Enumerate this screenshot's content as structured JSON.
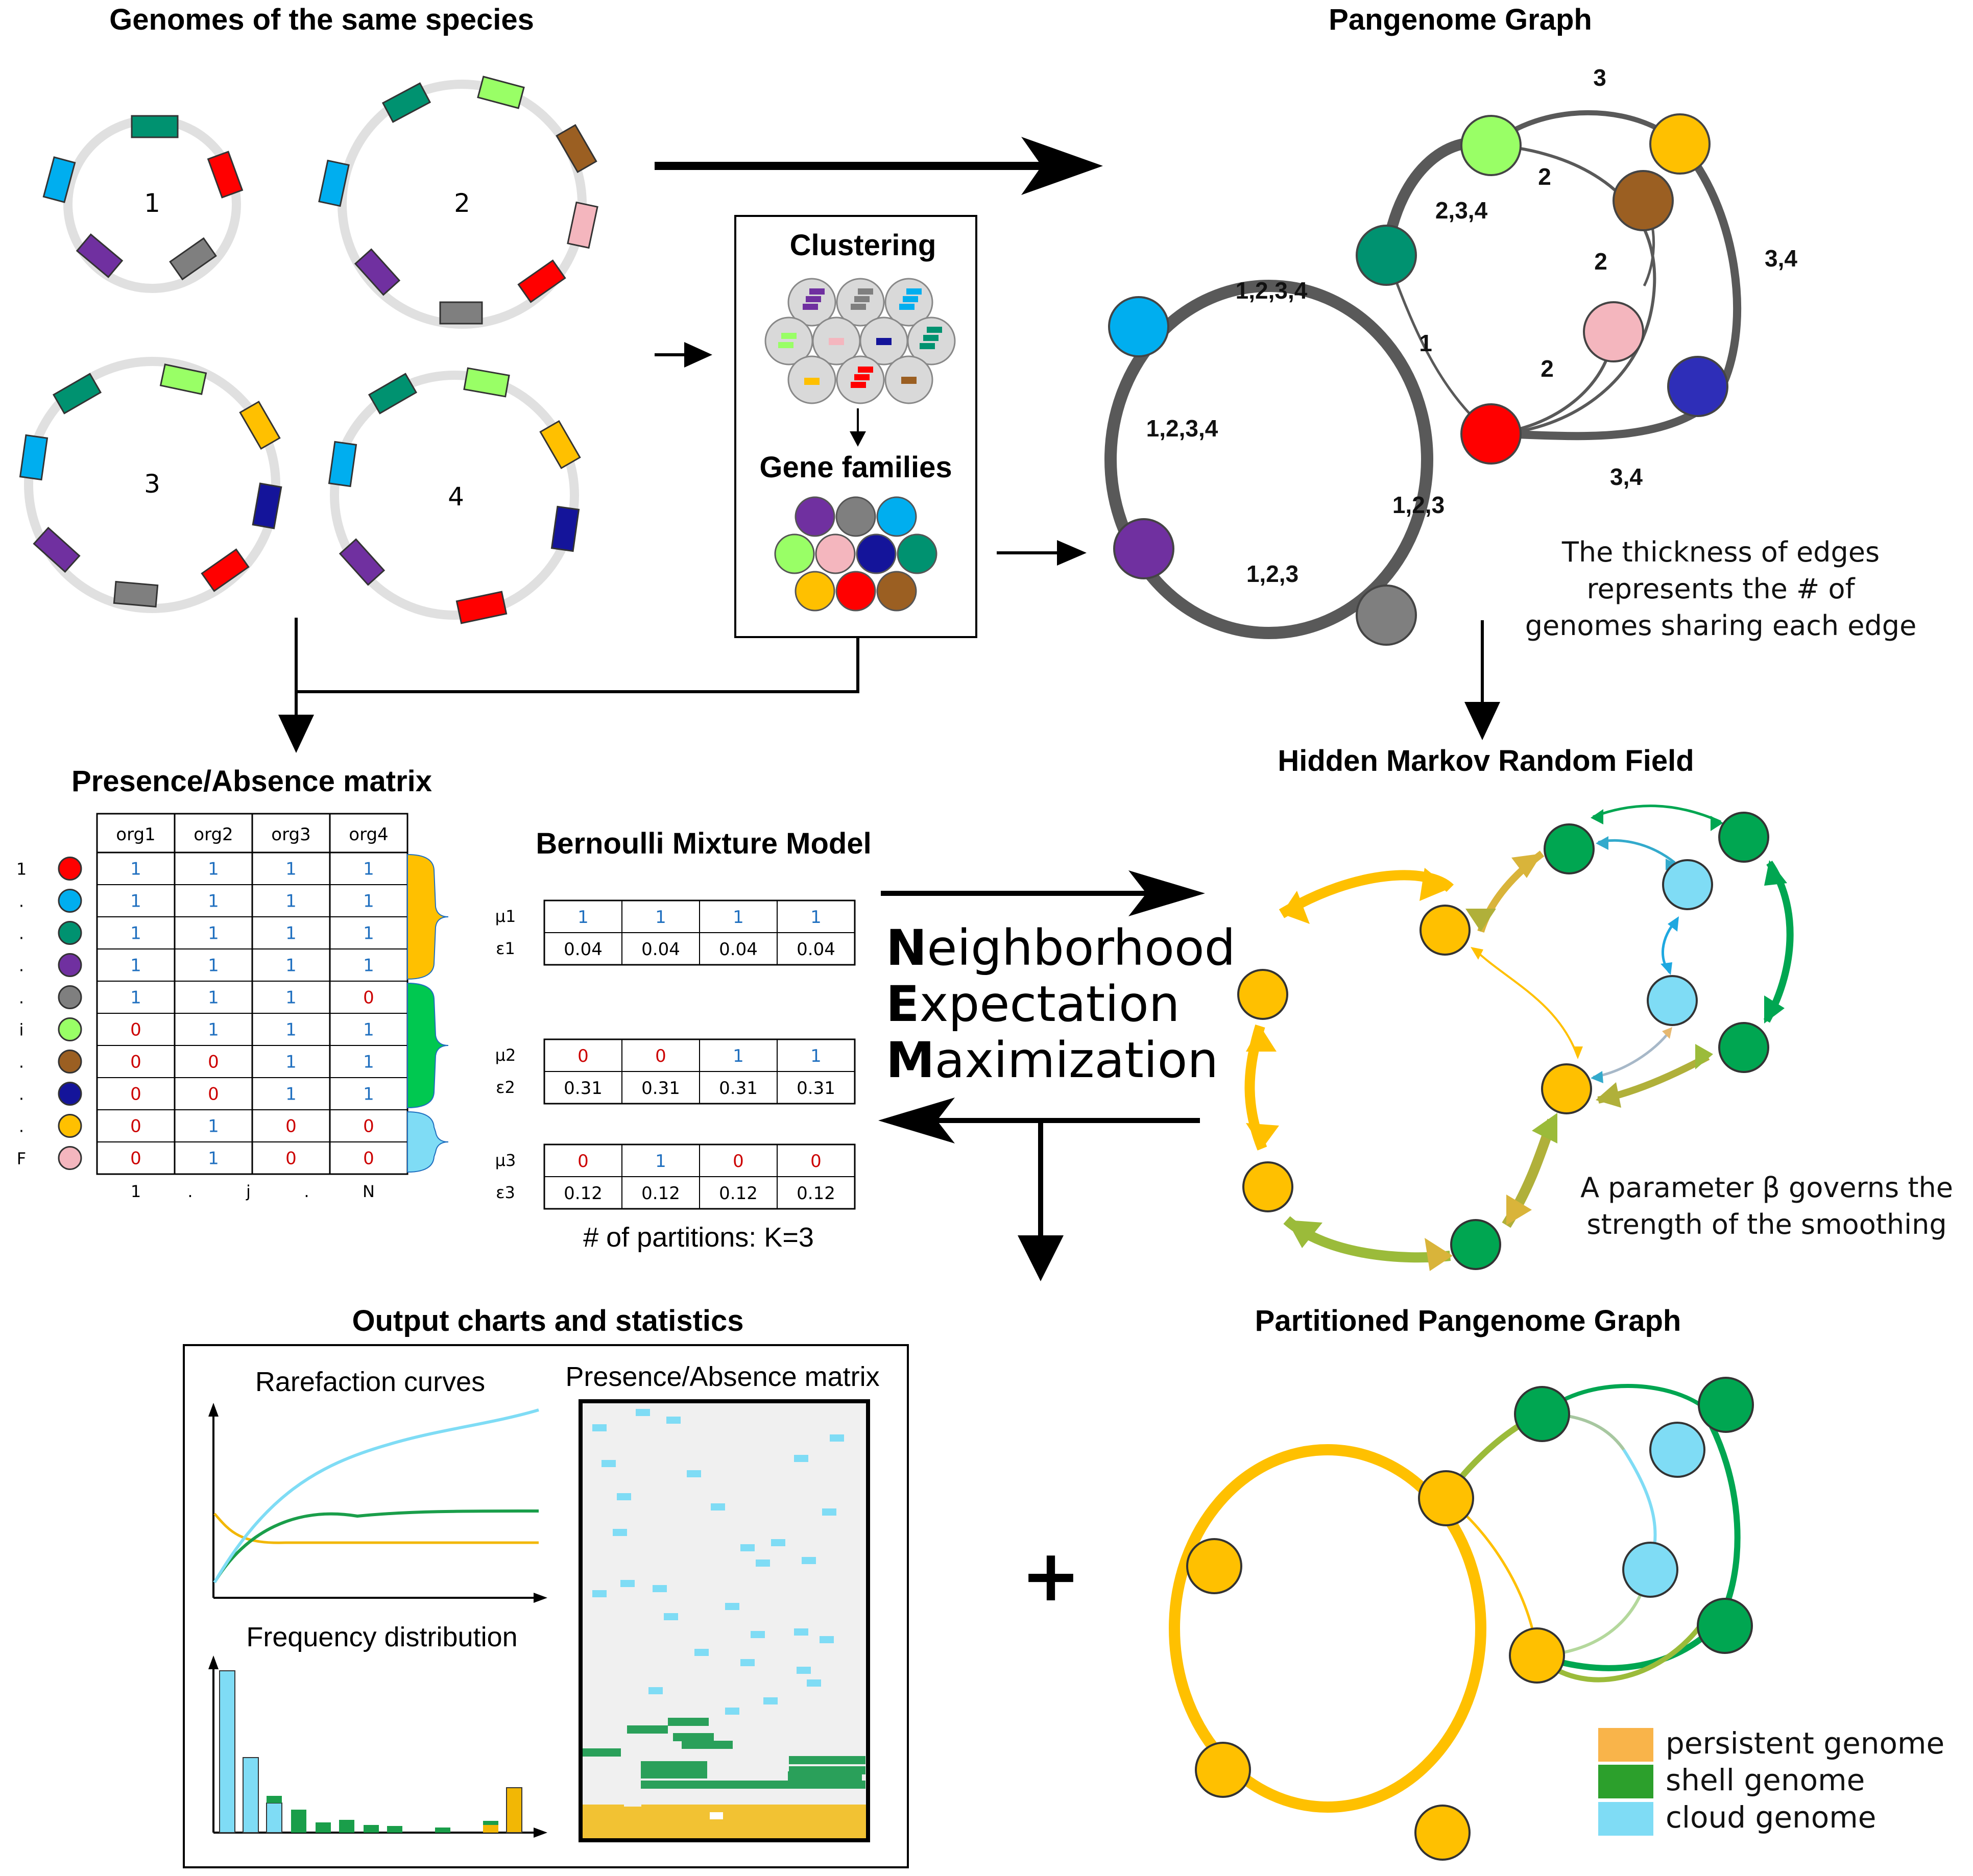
{
  "titles": {
    "genomes": "Genomes of the same species",
    "pangenome_graph": "Pangenome Graph",
    "clustering": "Clustering",
    "gene_families": "Gene families",
    "pa_matrix": "Presence/Absence matrix",
    "bmm": "Bernoulli Mixture Model",
    "hmrf": "Hidden Markov Random Field",
    "output": "Output charts and statistics",
    "partitioned": "Partitioned Pangenome Graph"
  },
  "genome_labels": [
    "1",
    "2",
    "3",
    "4"
  ],
  "edge_labels": {
    "e_top3": "3",
    "e_2a": "2",
    "e_234": "2,3,4",
    "e_2b": "2",
    "e_34a": "3,4",
    "e_1234a": "1,2,3,4",
    "e_1": "1",
    "e_2c": "2",
    "e_1234b": "1,2,3,4",
    "e_34b": "3,4",
    "e_123a": "1,2,3",
    "e_123b": "1,2,3"
  },
  "note_thickness": [
    "The thickness of edges",
    "represents the # of",
    "genomes sharing each edge"
  ],
  "matrix": {
    "headers": [
      "org1",
      "org2",
      "org3",
      "org4"
    ],
    "rows": [
      [
        "1",
        "1",
        "1",
        "1"
      ],
      [
        "1",
        "1",
        "1",
        "1"
      ],
      [
        "1",
        "1",
        "1",
        "1"
      ],
      [
        "1",
        "1",
        "1",
        "1"
      ],
      [
        "1",
        "1",
        "1",
        "0"
      ],
      [
        "0",
        "1",
        "1",
        "1"
      ],
      [
        "0",
        "0",
        "1",
        "1"
      ],
      [
        "0",
        "0",
        "1",
        "1"
      ],
      [
        "0",
        "1",
        "0",
        "0"
      ],
      [
        "0",
        "1",
        "0",
        "0"
      ]
    ],
    "row_index": [
      "1",
      ".",
      ".",
      ".",
      ".",
      "i",
      ".",
      ".",
      ".",
      "F"
    ],
    "col_index": [
      "1",
      ".",
      "j",
      ".",
      "N"
    ]
  },
  "bmm": {
    "partitions": [
      {
        "mu_label": "μ1",
        "eps_label": "ε1",
        "mu": [
          "1",
          "1",
          "1",
          "1"
        ],
        "eps": [
          "0.04",
          "0.04",
          "0.04",
          "0.04"
        ]
      },
      {
        "mu_label": "μ2",
        "eps_label": "ε2",
        "mu": [
          "0",
          "0",
          "1",
          "1"
        ],
        "eps": [
          "0.31",
          "0.31",
          "0.31",
          "0.31"
        ]
      },
      {
        "mu_label": "μ3",
        "eps_label": "ε3",
        "mu": [
          "0",
          "1",
          "0",
          "0"
        ],
        "eps": [
          "0.12",
          "0.12",
          "0.12",
          "0.12"
        ]
      }
    ],
    "k_label": "# of partitions: K=3"
  },
  "nem": {
    "n_initial": "N",
    "n_rest": "eighborhood",
    "e_initial": "E",
    "e_rest": "xpectation",
    "m_initial": "M",
    "m_rest": "aximization"
  },
  "note_beta": [
    "A parameter β governs the",
    "strength of the smoothing"
  ],
  "output": {
    "rarefaction": "Rarefaction curves",
    "frequency": "Frequency distribution",
    "pa_matrix": "Presence/Absence matrix"
  },
  "plus": "+",
  "legend": [
    {
      "label": "persistent genome",
      "color": "#f9b44a"
    },
    {
      "label": "shell genome",
      "color": "#2ca02c"
    },
    {
      "label": "cloud genome",
      "color": "#7fdcf5"
    }
  ],
  "colors": {
    "red": "#ff0000",
    "blue": "#00aeef",
    "teal": "#009270",
    "purple": "#7030a0",
    "gray": "#7f7f7f",
    "lightgreen": "#99ff66",
    "brown": "#9b5f22",
    "navy": "#14149a",
    "yellow": "#ffc000",
    "pink": "#f4b6be",
    "persistent": "#ffc000",
    "shell": "#00a651",
    "cloud": "#7fdcf5"
  }
}
